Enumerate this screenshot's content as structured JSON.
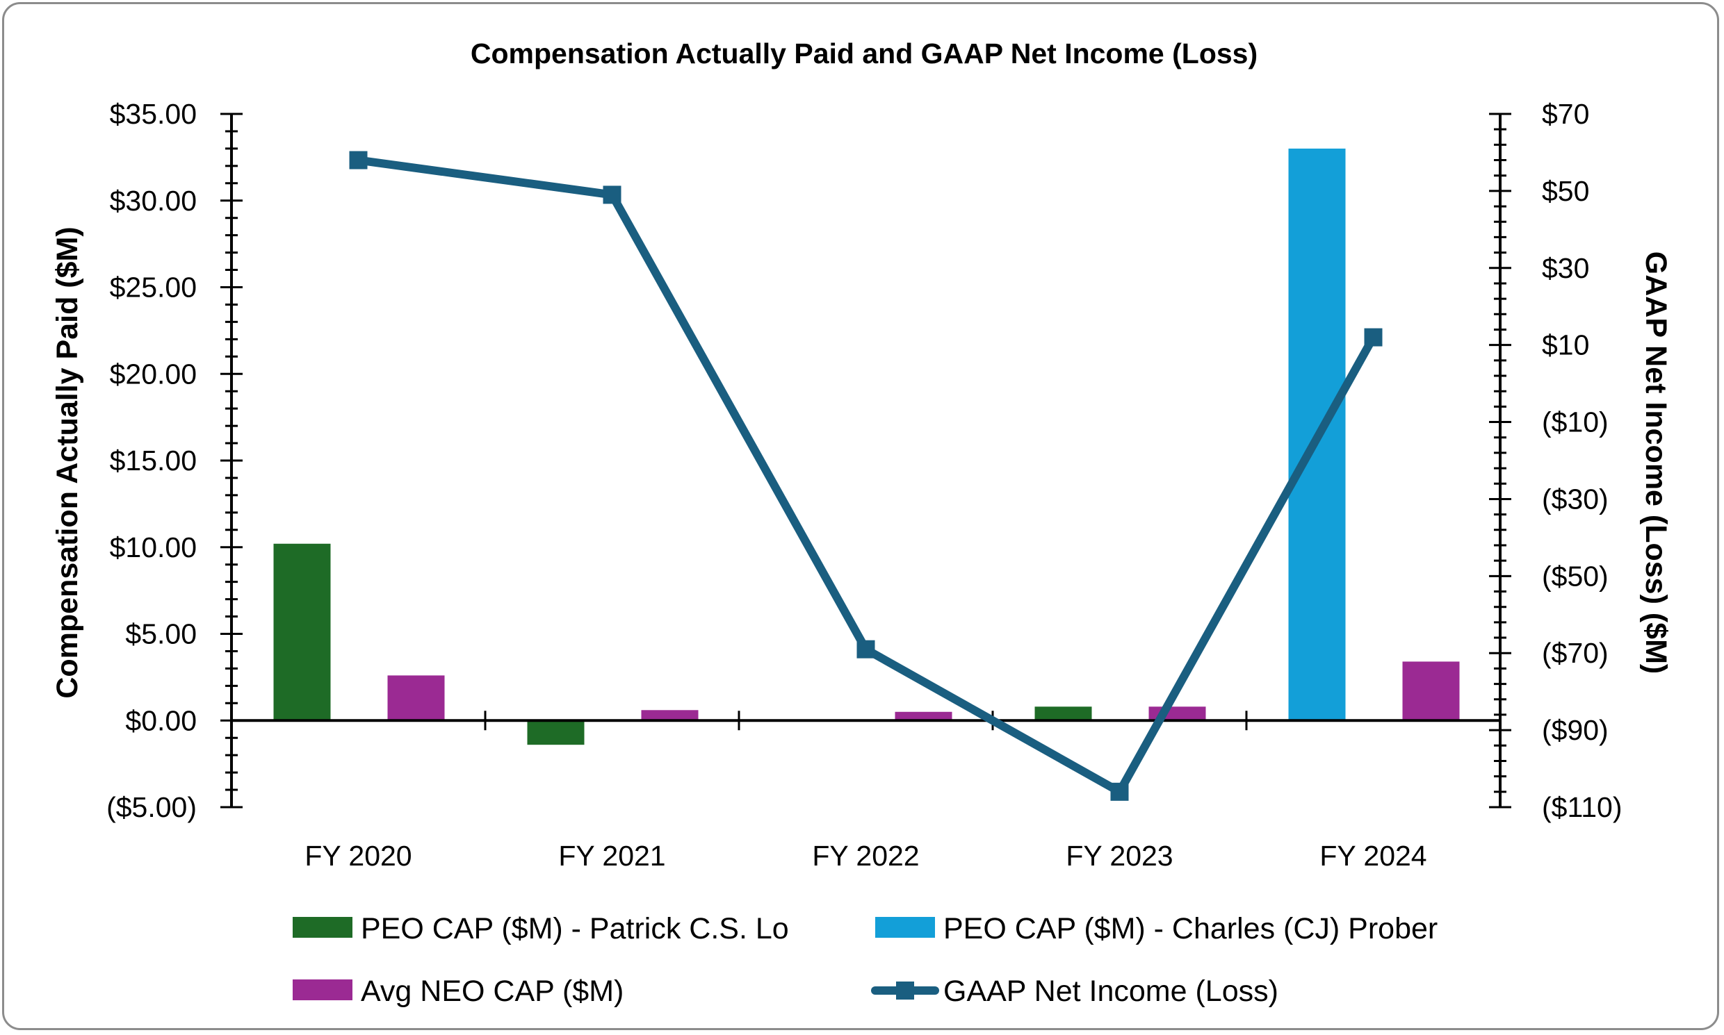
{
  "chart_data": {
    "type": "bar",
    "title": "Compensation Actually Paid and GAAP Net Income (Loss)",
    "categories": [
      "FY 2020",
      "FY 2021",
      "FY 2022",
      "FY 2023",
      "FY 2024"
    ],
    "ylabel": "Compensation Actually Paid ($M)",
    "y2label": "GAAP Net Income (Loss) ($M)",
    "ylim": [
      -5,
      35
    ],
    "y2lim": [
      -110,
      70
    ],
    "yticks": [
      "$35.00",
      "$30.00",
      "$25.00",
      "$20.00",
      "$15.00",
      "$10.00",
      "$5.00",
      "$0.00",
      "($5.00)"
    ],
    "ytick_values": [
      35,
      30,
      25,
      20,
      15,
      10,
      5,
      0,
      -5
    ],
    "y2ticks": [
      "$70",
      "$50",
      "$30",
      "$10",
      "($10)",
      "($30)",
      "($50)",
      "($70)",
      "($90)",
      "($110)"
    ],
    "y2tick_values": [
      70,
      50,
      30,
      10,
      -10,
      -30,
      -50,
      -70,
      -90,
      -110
    ],
    "series": [
      {
        "name": "PEO CAP ($M) - Patrick C.S. Lo",
        "kind": "bar",
        "axis": "left",
        "color": "#1e6b26",
        "slot": 0,
        "values": [
          10.2,
          -1.4,
          null,
          0.8,
          null
        ]
      },
      {
        "name": "PEO CAP ($M) - Charles (CJ) Prober",
        "kind": "bar",
        "axis": "left",
        "color": "#139fd8",
        "slot": 0,
        "values": [
          null,
          null,
          null,
          null,
          33.0
        ]
      },
      {
        "name": "Avg NEO CAP ($M)",
        "kind": "bar",
        "axis": "left",
        "color": "#9b2a93",
        "slot": 1,
        "values": [
          2.6,
          0.6,
          0.5,
          0.8,
          3.4
        ]
      },
      {
        "name": "GAAP Net Income (Loss)",
        "kind": "line",
        "axis": "right",
        "color": "#1a5e80",
        "values": [
          58,
          49,
          -69,
          -106,
          12
        ]
      }
    ],
    "legend": {
      "position": "bottom",
      "order": [
        0,
        1,
        2,
        3
      ]
    }
  }
}
